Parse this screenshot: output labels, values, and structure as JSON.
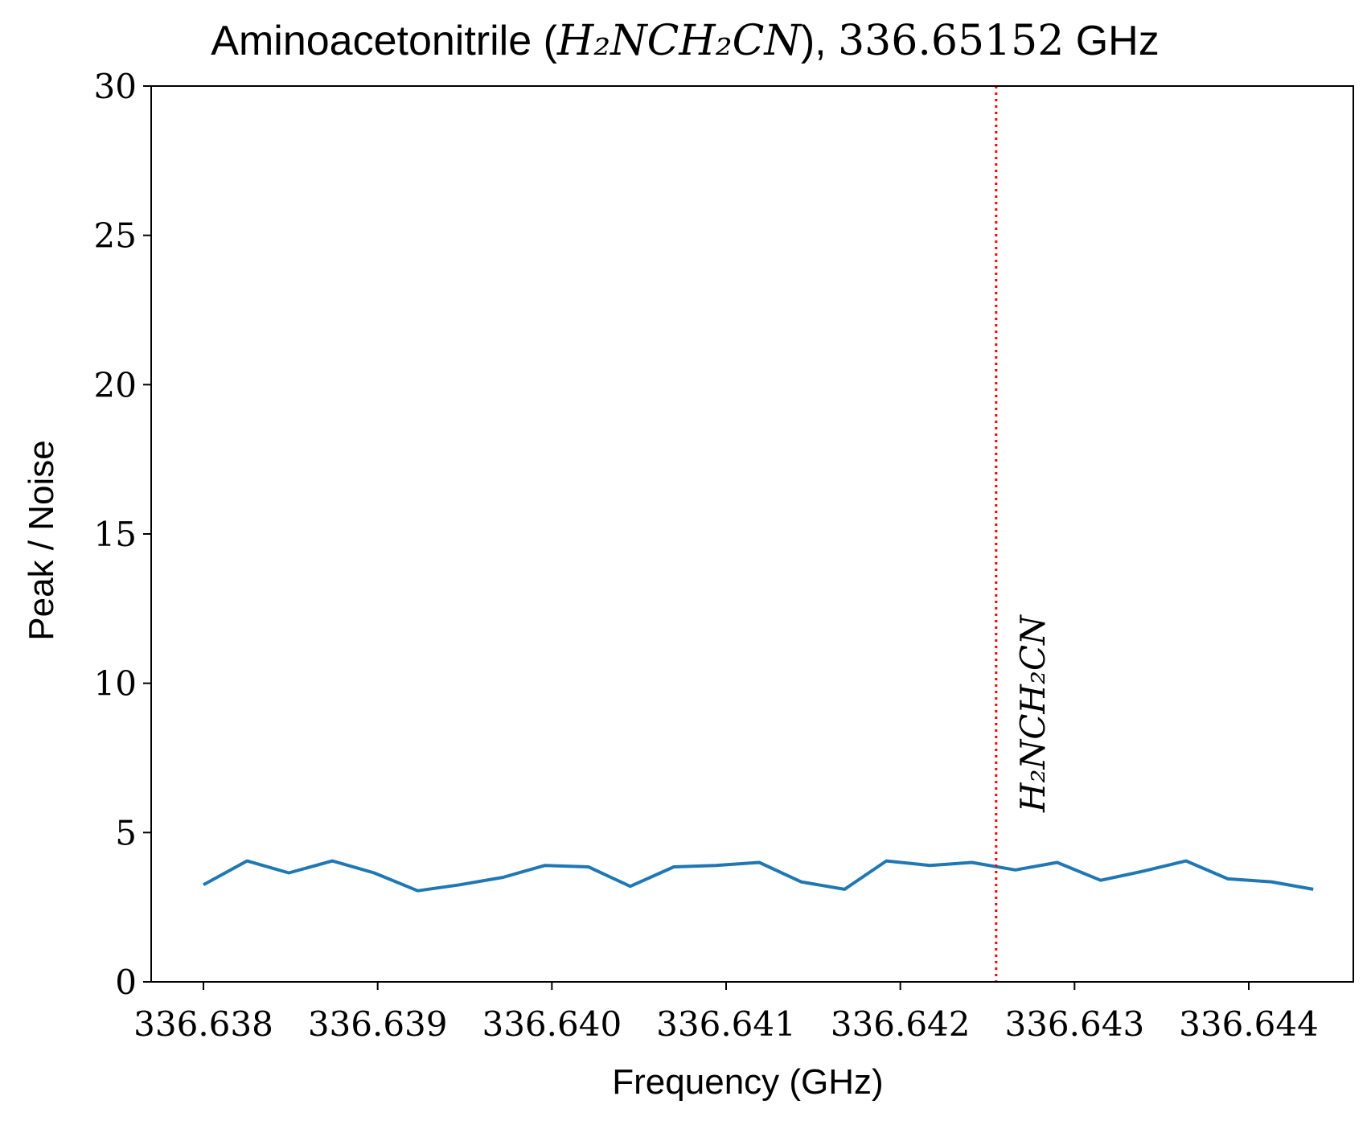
{
  "chart_data": {
    "type": "line",
    "title_prefix": "Aminoacetonitrile (",
    "title_formula": "H₂NCH₂CN",
    "title_suffix": "), ",
    "title_freq": "336.65152",
    "title_unit": " GHz",
    "xlabel": "Frequency (GHz)",
    "ylabel": "Peak / Noise",
    "xlim": [
      336.6377,
      336.6446
    ],
    "ylim": [
      0,
      30
    ],
    "x_ticks": [
      "336.638",
      "336.639",
      "336.640",
      "336.641",
      "336.642",
      "336.643",
      "336.644"
    ],
    "x_tick_values": [
      336.638,
      336.639,
      336.64,
      336.641,
      336.642,
      336.643,
      336.644
    ],
    "y_ticks": [
      "0",
      "5",
      "10",
      "15",
      "20",
      "25",
      "30"
    ],
    "y_tick_values": [
      0,
      5,
      10,
      15,
      20,
      25,
      30
    ],
    "grid": false,
    "series": [
      {
        "color": "#1f77b4",
        "x": [
          336.638,
          336.63825,
          336.63849,
          336.63874,
          336.63898,
          336.63923,
          336.63947,
          336.63972,
          336.63996,
          336.64021,
          336.64045,
          336.6407,
          336.64094,
          336.64119,
          336.64143,
          336.64168,
          336.64192,
          336.64217,
          336.64241,
          336.64266,
          336.6429,
          336.64315,
          336.64339,
          336.64364,
          336.64388,
          336.64413,
          336.64437
        ],
        "y": [
          3.25,
          4.05,
          3.65,
          4.05,
          3.65,
          3.05,
          3.25,
          3.5,
          3.9,
          3.85,
          3.2,
          3.85,
          3.9,
          4.0,
          3.35,
          3.1,
          4.05,
          3.9,
          4.0,
          3.75,
          4.0,
          3.4,
          3.7,
          4.05,
          3.45,
          3.35,
          3.1
        ]
      }
    ],
    "annotations": [
      {
        "type": "vline",
        "x": 336.64255,
        "color": "#ff0000",
        "style": "dotted",
        "label": "H₂NCH₂CN"
      }
    ]
  }
}
